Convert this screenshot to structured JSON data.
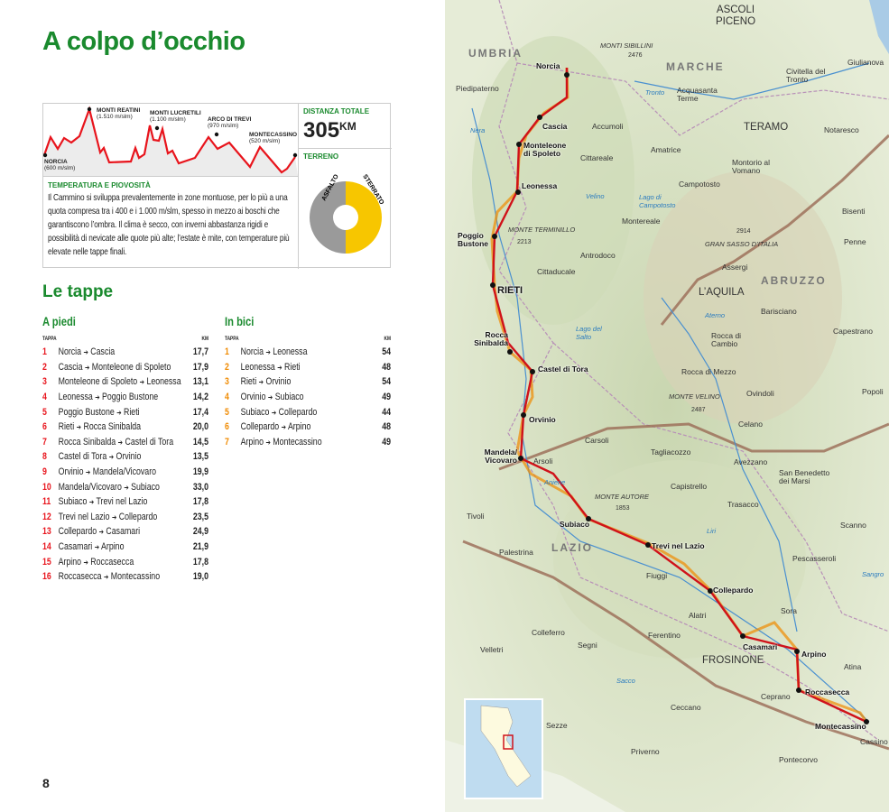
{
  "title": "A colpo d’occhio",
  "profile": {
    "points": [
      {
        "name": "NORCIA",
        "elev": "(600 m/slm)"
      },
      {
        "name": "MONTI REATINI",
        "elev": "(1.510 m/slm)"
      },
      {
        "name": "MONTI LUCRETILI",
        "elev": "(1.100 m/slm)"
      },
      {
        "name": "ARCO DI TREVI",
        "elev": "(970 m/slm)"
      },
      {
        "name": "MONTECASSINO",
        "elev": "(520 m/slm)"
      }
    ],
    "line_color": "#e8141c"
  },
  "distance": {
    "label": "DISTANZA TOTALE",
    "value": "305",
    "unit": "KM"
  },
  "terrain": {
    "label": "TERRENO",
    "segments": [
      {
        "name": "ASFALTO",
        "share": 0.5,
        "color": "#9a9a9a"
      },
      {
        "name": "STERRATO",
        "share": 0.5,
        "color": "#f7c600"
      }
    ]
  },
  "climate": {
    "label": "TEMPERATURA E PIOVOSITÀ",
    "text": "Il Cammino si sviluppa prevalentemente in zone montuose, per lo più a una quota compresa tra i 400 e i 1.000 m/slm, spesso in mezzo ai boschi che garantiscono l’ombra. Il clima è secco, con inverni abbastanza rigidi e possibilità di nevicate alle quote più alte; l’estate è mite, con temperature più elevate nelle tappe finali."
  },
  "stages_title": "Le tappe",
  "foot": {
    "title": "A piedi",
    "col_stage": "TAPPA",
    "col_km": "KM",
    "rows": [
      {
        "n": "1",
        "from": "Norcia",
        "to": "Cascia",
        "km": "17,7"
      },
      {
        "n": "2",
        "from": "Cascia",
        "to": "Monteleone di Spoleto",
        "km": "17,9"
      },
      {
        "n": "3",
        "from": "Monteleone di Spoleto",
        "to": "Leonessa",
        "km": "13,1"
      },
      {
        "n": "4",
        "from": "Leonessa",
        "to": "Poggio Bustone",
        "km": "14,2"
      },
      {
        "n": "5",
        "from": "Poggio Bustone",
        "to": "Rieti",
        "km": "17,4"
      },
      {
        "n": "6",
        "from": "Rieti",
        "to": "Rocca Sinibalda",
        "km": "20,0"
      },
      {
        "n": "7",
        "from": "Rocca Sinibalda",
        "to": "Castel di Tora",
        "km": "14,5"
      },
      {
        "n": "8",
        "from": "Castel di Tora",
        "to": "Orvinio",
        "km": "13,5"
      },
      {
        "n": "9",
        "from": "Orvinio",
        "to": "Mandela/Vicovaro",
        "km": "19,9"
      },
      {
        "n": "10",
        "from": "Mandela/Vicovaro",
        "to": "Subiaco",
        "km": "33,0"
      },
      {
        "n": "11",
        "from": "Subiaco",
        "to": "Trevi nel Lazio",
        "km": "17,8"
      },
      {
        "n": "12",
        "from": "Trevi nel Lazio",
        "to": "Collepardo",
        "km": "23,5"
      },
      {
        "n": "13",
        "from": "Collepardo",
        "to": "Casamari",
        "km": "24,9"
      },
      {
        "n": "14",
        "from": "Casamari",
        "to": "Arpino",
        "km": "21,9"
      },
      {
        "n": "15",
        "from": "Arpino",
        "to": "Roccasecca",
        "km": "17,8"
      },
      {
        "n": "16",
        "from": "Roccasecca",
        "to": "Montecassino",
        "km": "19,0"
      }
    ]
  },
  "bike": {
    "title": "In bici",
    "col_stage": "TAPPA",
    "col_km": "KM",
    "rows": [
      {
        "n": "1",
        "from": "Norcia",
        "to": "Leonessa",
        "km": "54"
      },
      {
        "n": "2",
        "from": "Leonessa",
        "to": "Rieti",
        "km": "48"
      },
      {
        "n": "3",
        "from": "Rieti",
        "to": "Orvinio",
        "km": "54"
      },
      {
        "n": "4",
        "from": "Orvinio",
        "to": "Subiaco",
        "km": "49"
      },
      {
        "n": "5",
        "from": "Subiaco",
        "to": "Collepardo",
        "km": "44"
      },
      {
        "n": "6",
        "from": "Collepardo",
        "to": "Arpino",
        "km": "48"
      },
      {
        "n": "7",
        "from": "Arpino",
        "to": "Montecassino",
        "km": "49"
      }
    ]
  },
  "colors": {
    "foot_accent": "#e8141c",
    "bike_accent": "#f08a00",
    "heading_green": "#1a8a2e"
  },
  "page_number": "8",
  "map": {
    "route_towns": [
      "Norcia",
      "Cascia",
      "Monteleone di Spoleto",
      "Leonessa",
      "Poggio Bustone",
      "RIETI",
      "Rocca Sinibalda",
      "Castel di Tora",
      "Orvinio",
      "Mandela/ Vicovaro",
      "Subiaco",
      "Trevi nel Lazio",
      "Collepardo",
      "Casamari",
      "Arpino",
      "Roccasecca",
      "Montecassino"
    ],
    "regions": [
      "UMBRIA",
      "MARCHE",
      "ABRUZZO",
      "LAZIO"
    ],
    "cities": [
      "ASCOLI PICENO",
      "TERAMO",
      "L’AQUILA",
      "FROSINONE"
    ],
    "places": [
      "Piedipaterno",
      "Accumoli",
      "Acquasanta Terme",
      "Civitella del Tronto",
      "Giulianova",
      "Notaresco",
      "Amatrice",
      "Cittareale",
      "Campotosto",
      "Montorio al Vomano",
      "Montereale",
      "Bisenti",
      "Penne",
      "Antrodoco",
      "Cittaducale",
      "Assergi",
      "Barisciano",
      "Rocca di Cambio",
      "Capestrano",
      "Rocca di Mezzo",
      "Ovindoli",
      "Popoli",
      "Celano",
      "Carsoli",
      "Tagliacozzo",
      "Avezzano",
      "Arsoli",
      "San Benedetto dei Marsi",
      "Capistrello",
      "Trasacco",
      "Tivoli",
      "Scanno",
      "Palestrina",
      "Pescasseroli",
      "Fiuggi",
      "Alatri",
      "Sora",
      "Colleferro",
      "Segni",
      "Velletri",
      "Ferentino",
      "Atina",
      "Ceprano",
      "Ceccano",
      "Sezze",
      "Priverno",
      "Pontecorvo",
      "Cassino"
    ],
    "mountains": [
      "MONTI SIBILLINI",
      "2476",
      "MONTE TERMINILLO",
      "2213",
      "GRAN SASSO D’ITALIA",
      "2914",
      "MONTE VELINO",
      "2487",
      "MONTE AUTORE",
      "1853"
    ],
    "waters": [
      "Nera",
      "Tronto",
      "Velino",
      "Lago di Campotosto",
      "Aterno",
      "Lago del Salto",
      "Aniene",
      "Liri",
      "Sangro",
      "Sacco"
    ]
  }
}
